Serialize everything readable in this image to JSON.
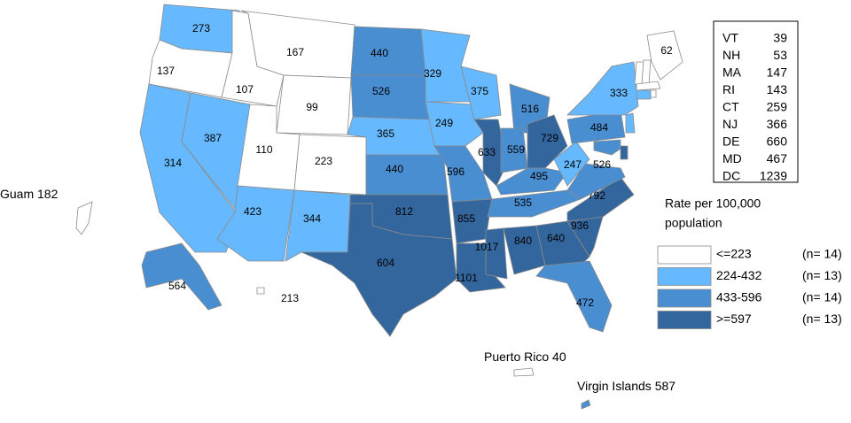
{
  "map": {
    "regions": [
      {
        "value": 273,
        "color": "#66b8ff"
      },
      {
        "value": 137,
        "color": "#ffffff"
      },
      {
        "value": 314,
        "color": "#66b8ff"
      },
      {
        "value": 387,
        "color": "#66b8ff"
      },
      {
        "value": 107,
        "color": "#ffffff"
      },
      {
        "value": 167,
        "color": "#ffffff"
      },
      {
        "value": 99,
        "color": "#ffffff"
      },
      {
        "value": 110,
        "color": "#ffffff"
      },
      {
        "value": 223,
        "color": "#ffffff"
      },
      {
        "value": 423,
        "color": "#66b8ff"
      },
      {
        "value": 344,
        "color": "#66b8ff"
      },
      {
        "value": 440,
        "color": "#4a8ed2"
      },
      {
        "value": 526,
        "color": "#4a8ed2"
      },
      {
        "value": 365,
        "color": "#66b8ff"
      },
      {
        "value": 440,
        "color": "#4a8ed2"
      },
      {
        "value": 812,
        "color": "#34669e"
      },
      {
        "value": 604,
        "color": "#34669e"
      },
      {
        "value": 329,
        "color": "#66b8ff"
      },
      {
        "value": 249,
        "color": "#66b8ff"
      },
      {
        "value": 596,
        "color": "#4a8ed2"
      },
      {
        "value": 855,
        "color": "#34669e"
      },
      {
        "value": 1101,
        "color": "#34669e"
      },
      {
        "value": 1017,
        "color": "#34669e"
      },
      {
        "value": 840,
        "color": "#34669e"
      },
      {
        "value": 375,
        "color": "#66b8ff"
      },
      {
        "value": 633,
        "color": "#34669e"
      },
      {
        "value": 516,
        "color": "#4a8ed2"
      },
      {
        "value": 559,
        "color": "#4a8ed2"
      },
      {
        "value": 729,
        "color": "#34669e"
      },
      {
        "value": 495,
        "color": "#4a8ed2"
      },
      {
        "value": 535,
        "color": "#4a8ed2"
      },
      {
        "value": 640,
        "color": "#34669e"
      },
      {
        "value": 936,
        "color": "#34669e"
      },
      {
        "value": 792,
        "color": "#34669e"
      },
      {
        "value": 526,
        "color": "#4a8ed2"
      },
      {
        "value": 247,
        "color": "#66b8ff"
      },
      {
        "value": 484,
        "color": "#4a8ed2"
      },
      {
        "value": 333,
        "color": "#66b8ff"
      },
      {
        "value": 472,
        "color": "#4a8ed2"
      },
      {
        "value": 62,
        "color": "#ffffff"
      },
      {
        "value": 564,
        "color": "#4a8ed2"
      },
      {
        "value": 213,
        "color": "#ffffff"
      }
    ],
    "territories": [
      {
        "label": "Guam",
        "value": 182,
        "color": "#ffffff"
      },
      {
        "label": "Puerto Rico",
        "value": 40,
        "color": "#ffffff"
      },
      {
        "label": "Virgin Islands",
        "value": 587,
        "color": "#4a8ed2"
      }
    ],
    "inset_table": [
      {
        "label": "VT",
        "value": 39,
        "color": "#ffffff"
      },
      {
        "label": "NH",
        "value": 53,
        "color": "#ffffff"
      },
      {
        "label": "MA",
        "value": 147,
        "color": "#ffffff"
      },
      {
        "label": "RI",
        "value": 143,
        "color": "#ffffff"
      },
      {
        "label": "CT",
        "value": 259,
        "color": "#66b8ff"
      },
      {
        "label": "NJ",
        "value": 366,
        "color": "#66b8ff"
      },
      {
        "label": "DE",
        "value": 660,
        "color": "#34669e"
      },
      {
        "label": "MD",
        "value": 467,
        "color": "#4a8ed2"
      },
      {
        "label": "DC",
        "value": 1239,
        "color": "#34669e"
      }
    ],
    "legend": {
      "title": [
        "Rate per 100,000",
        "population"
      ],
      "items": [
        {
          "label": "<=223",
          "count_label": "(n= 14)",
          "color": "#ffffff"
        },
        {
          "label": "224-432",
          "count_label": "(n= 13)",
          "color": "#66b8ff"
        },
        {
          "label": "433-596",
          "count_label": "(n= 14)",
          "color": "#4a8ed2"
        },
        {
          "label": ">=597",
          "count_label": "(n= 13)",
          "color": "#34669e"
        }
      ]
    }
  }
}
